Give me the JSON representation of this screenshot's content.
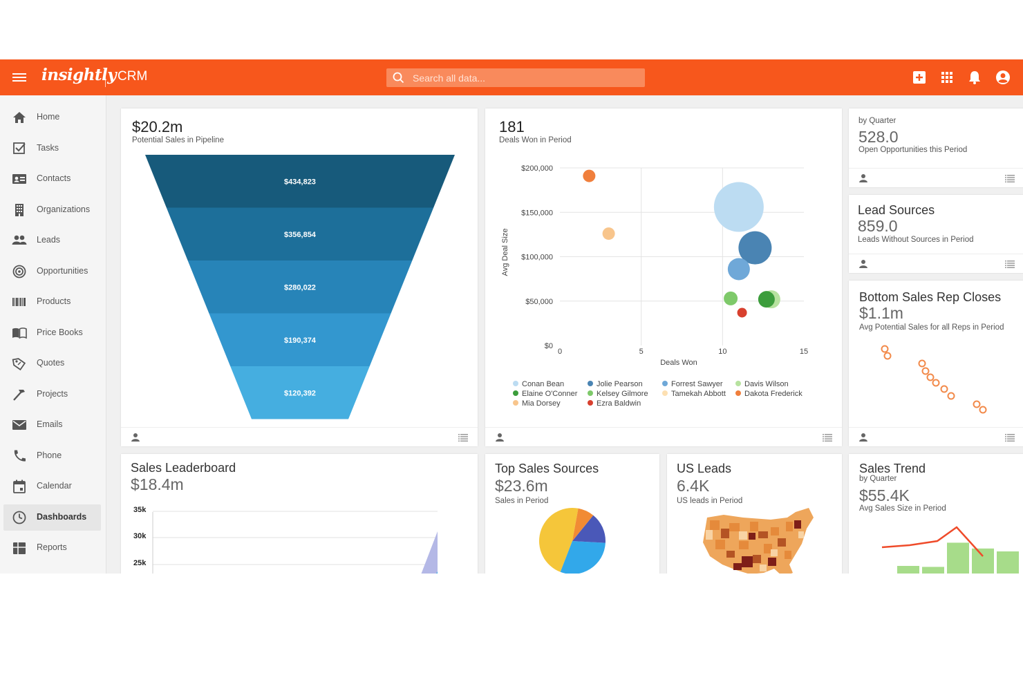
{
  "header": {
    "logo": "insightly",
    "app_name": "CRM",
    "search_placeholder": "Search all data..."
  },
  "colors": {
    "brand": "#f7571c",
    "funnel": [
      "#175a7b",
      "#1d6f9a",
      "#2784b8",
      "#3397cf",
      "#45aee0"
    ]
  },
  "sidebar": {
    "items": [
      {
        "label": "Home",
        "icon": "home-icon"
      },
      {
        "label": "Tasks",
        "icon": "tasks-icon"
      },
      {
        "label": "Contacts",
        "icon": "contacts-icon"
      },
      {
        "label": "Organizations",
        "icon": "organizations-icon"
      },
      {
        "label": "Leads",
        "icon": "leads-icon"
      },
      {
        "label": "Opportunities",
        "icon": "opportunities-icon"
      },
      {
        "label": "Products",
        "icon": "products-icon"
      },
      {
        "label": "Price Books",
        "icon": "price-books-icon"
      },
      {
        "label": "Quotes",
        "icon": "quotes-icon"
      },
      {
        "label": "Projects",
        "icon": "projects-icon"
      },
      {
        "label": "Emails",
        "icon": "emails-icon"
      },
      {
        "label": "Phone",
        "icon": "phone-icon"
      },
      {
        "label": "Calendar",
        "icon": "calendar-icon"
      },
      {
        "label": "Dashboards",
        "icon": "dashboards-icon",
        "active": true
      },
      {
        "label": "Reports",
        "icon": "reports-icon"
      }
    ]
  },
  "cards": {
    "pipeline": {
      "value": "$20.2m",
      "subtitle": "Potential Sales in Pipeline"
    },
    "deals": {
      "value": "181",
      "subtitle": "Deals Won in Period"
    },
    "opportunities": {
      "top": "by Quarter",
      "value": "528.0",
      "subtitle": "Open Opportunities this Period"
    },
    "lead_sources": {
      "title": "Lead Sources",
      "value": "859.0",
      "subtitle": "Leads Without Sources in Period"
    },
    "bottom_reps": {
      "title": "Bottom Sales Rep Closes",
      "value": "$1.1m",
      "subtitle": "Avg Potential Sales for all Reps in Period"
    },
    "leaderboard": {
      "title": "Sales Leaderboard",
      "value": "$18.4m"
    },
    "top_sources": {
      "title": "Top Sales Sources",
      "value": "$23.6m",
      "subtitle": "Sales in Period"
    },
    "us_leads": {
      "title": "US Leads",
      "value": "6.4K",
      "subtitle": "US leads in Period"
    },
    "sales_trend": {
      "title": "Sales Trend",
      "top": "by Quarter",
      "value": "$55.4K",
      "subtitle": "Avg Sales Size in Period"
    }
  },
  "chart_data": [
    {
      "type": "bar",
      "chart": "funnel",
      "categories": [
        "$434,823",
        "$356,854",
        "$280,022",
        "$190,374",
        "$120,392"
      ],
      "values": [
        434823,
        356854,
        280022,
        190374,
        120392
      ]
    },
    {
      "type": "scatter",
      "chart": "bubble",
      "xlabel": "Deals Won",
      "ylabel": "Avg Deal Size",
      "xlim": [
        0,
        15
      ],
      "ylim": [
        0,
        200000
      ],
      "x_ticks": [
        "0",
        "5",
        "10",
        "15"
      ],
      "y_ticks": [
        "$0",
        "$50,000",
        "$100,000",
        "$150,000",
        "$200,000"
      ],
      "series": [
        {
          "name": "Conan Bean",
          "color": "#bcdcf2",
          "x": 11.0,
          "y": 156000,
          "size": 36
        },
        {
          "name": "Jolie Pearson",
          "color": "#4a84b3",
          "x": 12.0,
          "y": 110000,
          "size": 24
        },
        {
          "name": "Forrest Sawyer",
          "color": "#6fa8d8",
          "x": 11.0,
          "y": 86000,
          "size": 16
        },
        {
          "name": "Davis Wilson",
          "color": "#b7e29f",
          "x": 13.0,
          "y": 52000,
          "size": 13
        },
        {
          "name": "Elaine O'Conner",
          "color": "#3c9d3c",
          "x": 12.7,
          "y": 52000,
          "size": 12
        },
        {
          "name": "Kelsey Gilmore",
          "color": "#7ec96a",
          "x": 10.5,
          "y": 53000,
          "size": 10
        },
        {
          "name": "Tamekah Abbott",
          "color": "#fde0b2",
          "x": 3.0,
          "y": 126000,
          "size": 1
        },
        {
          "name": "Dakota Frederick",
          "color": "#f07f3c",
          "x": 1.8,
          "y": 191000,
          "size": 9
        },
        {
          "name": "Mia Dorsey",
          "color": "#f8c58c",
          "x": 3.0,
          "y": 126000,
          "size": 9
        },
        {
          "name": "Ezra Baldwin",
          "color": "#d8402e",
          "x": 11.2,
          "y": 37000,
          "size": 7
        }
      ]
    },
    {
      "type": "line",
      "chart": "leaderboard",
      "y_ticks": [
        "35k",
        "30k",
        "25k"
      ]
    },
    {
      "type": "pie",
      "chart": "top-sales-sources",
      "slices": [
        {
          "color": "#f5c63a",
          "value": 47
        },
        {
          "color": "#32a8ea",
          "value": 30
        },
        {
          "color": "#4a58b8",
          "value": 15
        },
        {
          "color": "#f18b34",
          "value": 8
        }
      ]
    },
    {
      "type": "bar",
      "chart": "sales-trend",
      "values": [
        0.4,
        0.38,
        0.88,
        0.76,
        0.7
      ],
      "line": [
        0.5,
        0.55,
        0.64,
        0.8,
        0.33
      ]
    }
  ]
}
